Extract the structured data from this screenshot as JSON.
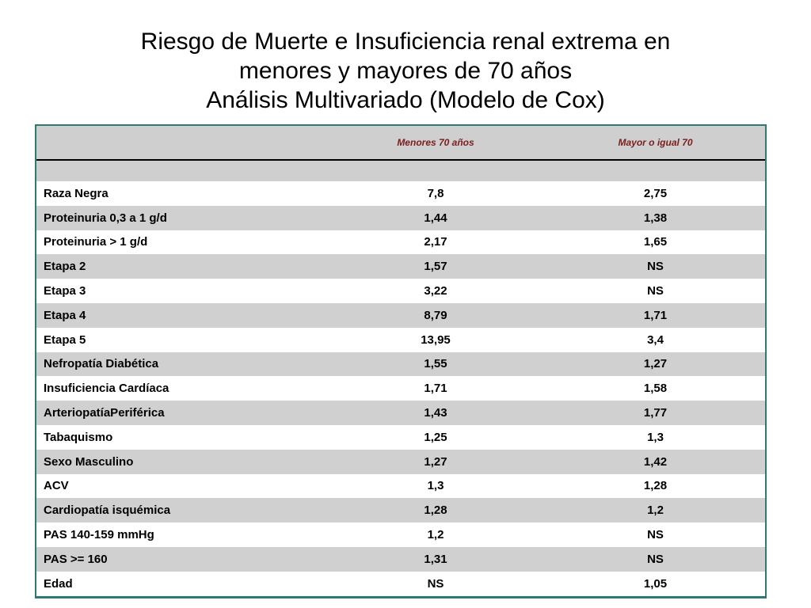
{
  "title": {
    "line1": "Riesgo de Muerte e Insuficiencia renal extrema en",
    "line2": "menores y mayores de 70 años",
    "line3": "Análisis Multivariado (Modelo de Cox)"
  },
  "table": {
    "headers": [
      "",
      "Menores 70 años",
      "Mayor o igual 70"
    ],
    "rows": [
      {
        "label": "Raza Negra",
        "under70": "7,8",
        "over70": "2,75"
      },
      {
        "label": "Proteinuria 0,3 a 1 g/d",
        "under70": "1,44",
        "over70": "1,38"
      },
      {
        "label": "Proteinuria > 1 g/d",
        "under70": "2,17",
        "over70": "1,65"
      },
      {
        "label": "Etapa 2",
        "under70": "1,57",
        "over70": "NS"
      },
      {
        "label": "Etapa 3",
        "under70": "3,22",
        "over70": "NS"
      },
      {
        "label": "Etapa 4",
        "under70": "8,79",
        "over70": "1,71"
      },
      {
        "label": "Etapa 5",
        "under70": "13,95",
        "over70": "3,4"
      },
      {
        "label": "Nefropatía Diabética",
        "under70": "1,55",
        "over70": "1,27"
      },
      {
        "label": "Insuficiencia Cardíaca",
        "under70": "1,71",
        "over70": "1,58"
      },
      {
        "label": "ArteriopatíaPeriférica",
        "under70": "1,43",
        "over70": "1,77"
      },
      {
        "label": "Tabaquismo",
        "under70": "1,25",
        "over70": "1,3"
      },
      {
        "label": "Sexo Masculino",
        "under70": "1,27",
        "over70": "1,42"
      },
      {
        "label": "ACV",
        "under70": "1,3",
        "over70": "1,28"
      },
      {
        "label": "Cardiopatía isquémica",
        "under70": "1,28",
        "over70": "1,2"
      },
      {
        "label": "PAS 140-159 mmHg",
        "under70": "1,2",
        "over70": "NS"
      },
      {
        "label": "PAS >= 160",
        "under70": "1,31",
        "over70": "NS"
      },
      {
        "label": "Edad",
        "under70": "NS",
        "over70": "1,05"
      }
    ]
  },
  "colors": {
    "table_border": "#2e7a72",
    "header_text": "#7a1d1d",
    "stripe": "#d0d0d0"
  }
}
